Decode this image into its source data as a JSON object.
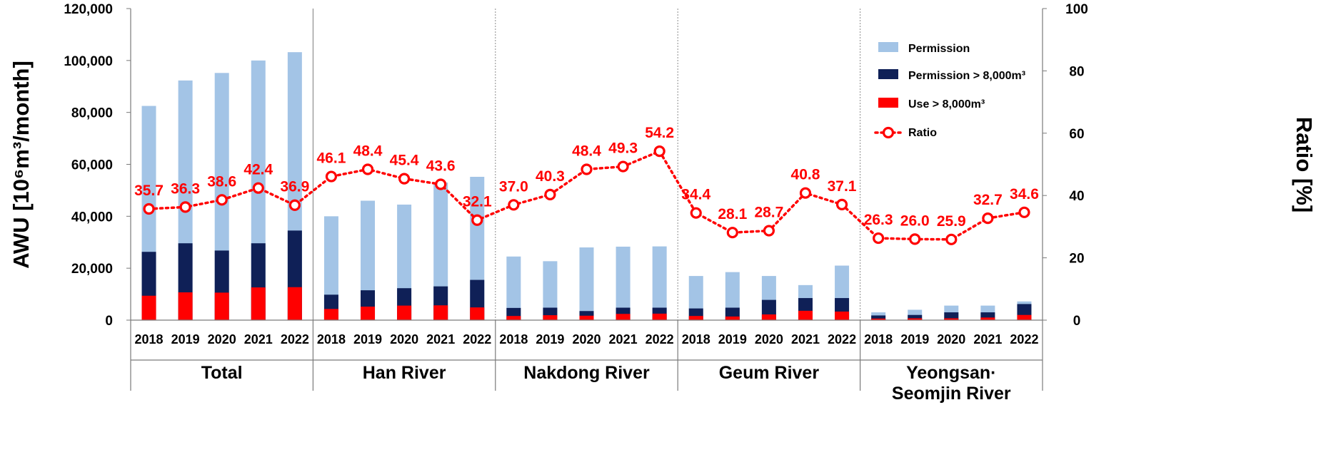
{
  "chart_data": {
    "type": "bar",
    "title": "",
    "ylabel": "AWU [10⁶m³/month]",
    "y2label": "Ratio [%]",
    "ylim": [
      0,
      120000
    ],
    "y2lim": [
      0,
      100
    ],
    "yticks": [
      "0",
      "20,000",
      "40,000",
      "60,000",
      "80,000",
      "100,000",
      "120,000"
    ],
    "y2ticks": [
      "0",
      "20",
      "40",
      "60",
      "80",
      "100"
    ],
    "groups": [
      "Total",
      "Han River",
      "Nakdong River",
      "Geum River",
      "Yeongsan·\nSeomjin River"
    ],
    "years": [
      "2018",
      "2019",
      "2020",
      "2021",
      "2022"
    ],
    "legend_position": "top-right",
    "series": [
      {
        "name": "Permission",
        "kind": "bar",
        "color": "#a3c4e6",
        "values": [
          [
            82500,
            92300,
            95200,
            100000,
            103200
          ],
          [
            40000,
            46000,
            44500,
            53000,
            55200
          ],
          [
            24500,
            22700,
            28000,
            28300,
            28400
          ],
          [
            17000,
            18500,
            17000,
            13500,
            21000
          ],
          [
            3000,
            4000,
            5600,
            5600,
            7200
          ]
        ]
      },
      {
        "name": "Permission > 8,000m³",
        "kind": "bar",
        "color": "#0f2057",
        "values": [
          [
            26300,
            29600,
            26800,
            29600,
            34500
          ],
          [
            9800,
            11500,
            12300,
            13000,
            15500
          ],
          [
            4700,
            4800,
            3500,
            4800,
            4800
          ],
          [
            4500,
            4800,
            7800,
            8500,
            8500
          ],
          [
            1800,
            2000,
            3000,
            3000,
            6200
          ]
        ]
      },
      {
        "name": "Use > 8,000m³",
        "kind": "bar",
        "color": "#ff0000",
        "values": [
          [
            9400,
            10700,
            10600,
            12600,
            12700
          ],
          [
            4300,
            5200,
            5600,
            5700,
            4900
          ],
          [
            1600,
            1900,
            1700,
            2400,
            2500
          ],
          [
            1600,
            1400,
            2200,
            3600,
            3300
          ],
          [
            600,
            700,
            700,
            1000,
            2000
          ]
        ]
      },
      {
        "name": "Ratio",
        "kind": "line",
        "axis": "right",
        "color": "#ff0000",
        "values": [
          [
            35.7,
            36.3,
            38.6,
            42.4,
            36.9
          ],
          [
            46.1,
            48.4,
            45.4,
            43.6,
            32.1
          ],
          [
            37.0,
            40.3,
            48.4,
            49.3,
            54.2
          ],
          [
            34.4,
            28.1,
            28.7,
            40.8,
            37.1
          ],
          [
            26.3,
            26.0,
            25.9,
            32.7,
            34.6
          ]
        ],
        "labels": [
          [
            "35.7",
            "36.3",
            "38.6",
            "42.4",
            "36.9"
          ],
          [
            "46.1",
            "48.4",
            "45.4",
            "43.6",
            "32.1"
          ],
          [
            "37.0",
            "40.3",
            "48.4",
            "49.3",
            "54.2"
          ],
          [
            "34.4",
            "28.1",
            "28.7",
            "40.8",
            "37.1"
          ],
          [
            "26.3",
            "26.0",
            "25.9",
            "32.7",
            "34.6"
          ]
        ]
      }
    ]
  }
}
